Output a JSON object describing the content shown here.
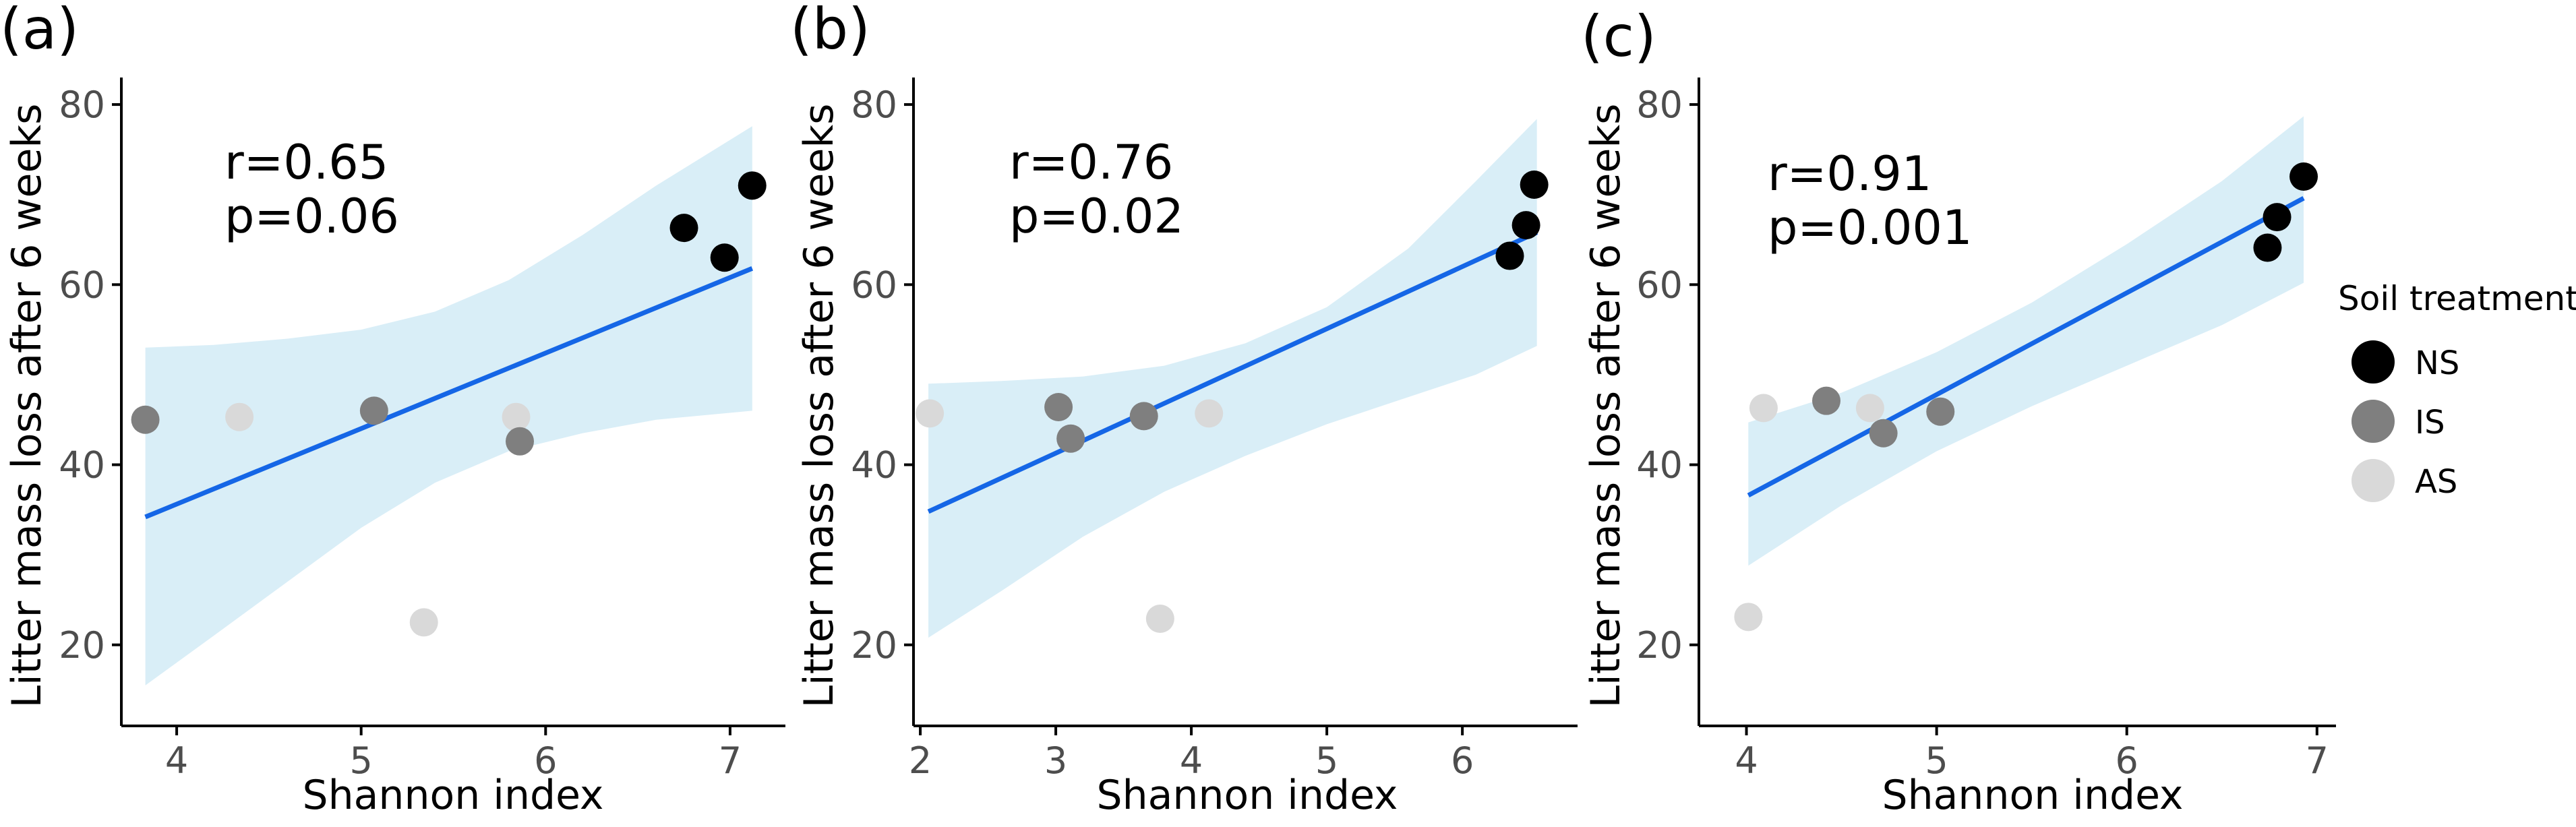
{
  "colors": {
    "band": "#d9eef7",
    "line": "#1566e6",
    "NS": "#000000",
    "IS": "#7f7f7f",
    "AS": "#d9d9d9",
    "axis": "#000000",
    "tick_text": "#4d4d4d"
  },
  "legend": {
    "title": "Soil treatment",
    "items": [
      {
        "key": "NS",
        "label": "NS"
      },
      {
        "key": "IS",
        "label": "IS"
      },
      {
        "key": "AS",
        "label": "AS"
      }
    ]
  },
  "chart_data": [
    {
      "panel": "(a)",
      "type": "scatter",
      "xlabel": "Shannon index",
      "ylabel": "Litter mass loss after 6 weeks",
      "xlim": [
        3.7,
        7.3
      ],
      "ylim": [
        11,
        83
      ],
      "xticks": [
        4,
        5,
        6,
        7
      ],
      "yticks": [
        20,
        40,
        60,
        80
      ],
      "annotation": [
        "r=0.65",
        "p=0.06"
      ],
      "regression": {
        "x": [
          3.83,
          7.12
        ],
        "y": [
          34.2,
          61.8
        ]
      },
      "ci_band": {
        "x": [
          3.83,
          4.2,
          4.6,
          5.0,
          5.4,
          5.8,
          6.2,
          6.6,
          7.12
        ],
        "upper": [
          53.0,
          53.3,
          54.0,
          55.0,
          57.0,
          60.5,
          65.5,
          71.0,
          77.6
        ],
        "lower": [
          15.5,
          21.0,
          27.0,
          33.0,
          38.0,
          41.5,
          43.5,
          45.0,
          46.0
        ]
      },
      "points": [
        {
          "x": 3.83,
          "y": 45.0,
          "group": "IS"
        },
        {
          "x": 4.34,
          "y": 45.3,
          "group": "AS"
        },
        {
          "x": 5.07,
          "y": 46.0,
          "group": "IS"
        },
        {
          "x": 5.34,
          "y": 22.5,
          "group": "AS"
        },
        {
          "x": 5.84,
          "y": 45.3,
          "group": "AS"
        },
        {
          "x": 5.86,
          "y": 42.6,
          "group": "IS"
        },
        {
          "x": 6.75,
          "y": 66.3,
          "group": "NS"
        },
        {
          "x": 6.97,
          "y": 63.0,
          "group": "NS"
        },
        {
          "x": 7.12,
          "y": 71.0,
          "group": "NS"
        }
      ]
    },
    {
      "panel": "(b)",
      "type": "scatter",
      "xlabel": "Shannon index",
      "ylabel": "Litter mass loss after 6 weeks",
      "xlim": [
        1.95,
        6.85
      ],
      "ylim": [
        11,
        83
      ],
      "xticks": [
        2,
        3,
        4,
        5,
        6
      ],
      "yticks": [
        20,
        40,
        60,
        80
      ],
      "annotation": [
        "r=0.76",
        "p=0.02"
      ],
      "regression": {
        "x": [
          2.06,
          6.55
        ],
        "y": [
          34.8,
          65.8
        ]
      },
      "ci_band": {
        "x": [
          2.06,
          2.6,
          3.2,
          3.8,
          4.4,
          5.0,
          5.6,
          6.1,
          6.55
        ],
        "upper": [
          49.0,
          49.3,
          49.8,
          51.0,
          53.5,
          57.5,
          64.0,
          71.5,
          78.4
        ],
        "lower": [
          20.8,
          26.0,
          32.0,
          37.0,
          41.0,
          44.5,
          47.5,
          50.0,
          53.2
        ]
      },
      "points": [
        {
          "x": 2.07,
          "y": 45.7,
          "group": "AS"
        },
        {
          "x": 3.02,
          "y": 46.4,
          "group": "IS"
        },
        {
          "x": 3.11,
          "y": 42.9,
          "group": "IS"
        },
        {
          "x": 3.65,
          "y": 45.4,
          "group": "IS"
        },
        {
          "x": 3.77,
          "y": 22.9,
          "group": "AS"
        },
        {
          "x": 4.13,
          "y": 45.7,
          "group": "AS"
        },
        {
          "x": 6.35,
          "y": 63.2,
          "group": "NS"
        },
        {
          "x": 6.47,
          "y": 66.6,
          "group": "NS"
        },
        {
          "x": 6.53,
          "y": 71.1,
          "group": "NS"
        }
      ]
    },
    {
      "panel": "(c)",
      "type": "scatter",
      "xlabel": "Shannon index",
      "ylabel": "Litter mass loss after 6 weeks",
      "xlim": [
        3.75,
        7.1
      ],
      "ylim": [
        11,
        83
      ],
      "xticks": [
        4,
        5,
        6,
        7
      ],
      "yticks": [
        20,
        40,
        60,
        80
      ],
      "annotation": [
        "r=0.91",
        "p=0.001"
      ],
      "regression": {
        "x": [
          4.01,
          6.93
        ],
        "y": [
          36.6,
          69.6
        ]
      },
      "ci_band": {
        "x": [
          4.01,
          4.5,
          5.0,
          5.5,
          6.0,
          6.5,
          6.93
        ],
        "upper": [
          44.7,
          48.0,
          52.5,
          58.0,
          64.5,
          71.5,
          78.7
        ],
        "lower": [
          28.8,
          35.5,
          41.5,
          46.5,
          51.0,
          55.5,
          60.2
        ]
      },
      "points": [
        {
          "x": 4.01,
          "y": 23.1,
          "group": "AS"
        },
        {
          "x": 4.09,
          "y": 46.3,
          "group": "AS"
        },
        {
          "x": 4.42,
          "y": 47.1,
          "group": "IS"
        },
        {
          "x": 4.65,
          "y": 46.3,
          "group": "AS"
        },
        {
          "x": 4.72,
          "y": 43.5,
          "group": "IS"
        },
        {
          "x": 5.02,
          "y": 45.9,
          "group": "IS"
        },
        {
          "x": 6.74,
          "y": 64.1,
          "group": "NS"
        },
        {
          "x": 6.79,
          "y": 67.5,
          "group": "NS"
        },
        {
          "x": 6.93,
          "y": 72.0,
          "group": "NS"
        }
      ]
    }
  ]
}
